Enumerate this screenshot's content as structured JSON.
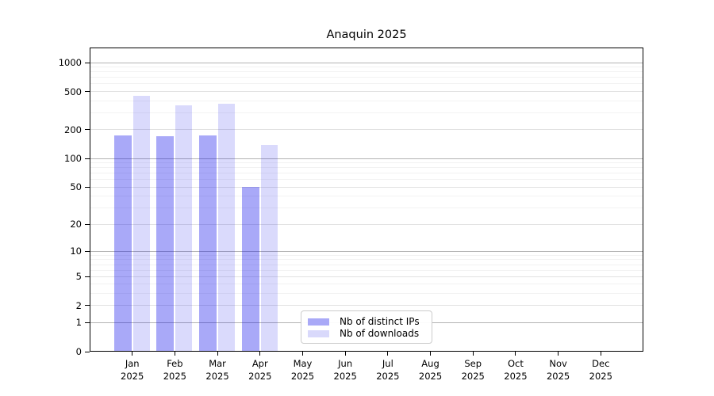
{
  "chart_data": {
    "type": "bar",
    "title": "Anaquin 2025",
    "scale": "log1p",
    "ylim": [
      0,
      1430
    ],
    "grid": true,
    "legend_position": "bottom-center",
    "categories": [
      "Jan",
      "Feb",
      "Mar",
      "Apr",
      "May",
      "Jun",
      "Jul",
      "Aug",
      "Sep",
      "Oct",
      "Nov",
      "Dec"
    ],
    "x_tick_year": "2025",
    "y_ticks": [
      1000,
      500,
      200,
      100,
      50,
      20,
      10,
      5,
      2,
      1,
      0
    ],
    "y_minor_ticks": [
      3,
      4,
      6,
      7,
      8,
      9,
      30,
      40,
      60,
      70,
      80,
      90,
      300,
      400,
      600,
      700,
      800,
      900
    ],
    "series": [
      {
        "name": "Nb of distinct IPs",
        "color": "rgba(10,10,235,0.35)",
        "solid_color": "#a9a9f7",
        "values": [
          175,
          170,
          175,
          50,
          0,
          0,
          0,
          0,
          0,
          0,
          0,
          0
        ]
      },
      {
        "name": "Nb of downloads",
        "color": "rgba(10,10,235,0.15)",
        "solid_color": "#d9d9fb",
        "values": [
          450,
          360,
          375,
          140,
          0,
          0,
          0,
          0,
          0,
          0,
          0,
          0
        ]
      }
    ]
  },
  "colors": {
    "background": "#ffffff",
    "spine": "#000000",
    "decade_grid": "#b3b3b3",
    "labeled_grid": "#e2e2e2",
    "minor_grid": "#f2f2f2",
    "legend_border": "#cccccc",
    "text": "#000000"
  }
}
